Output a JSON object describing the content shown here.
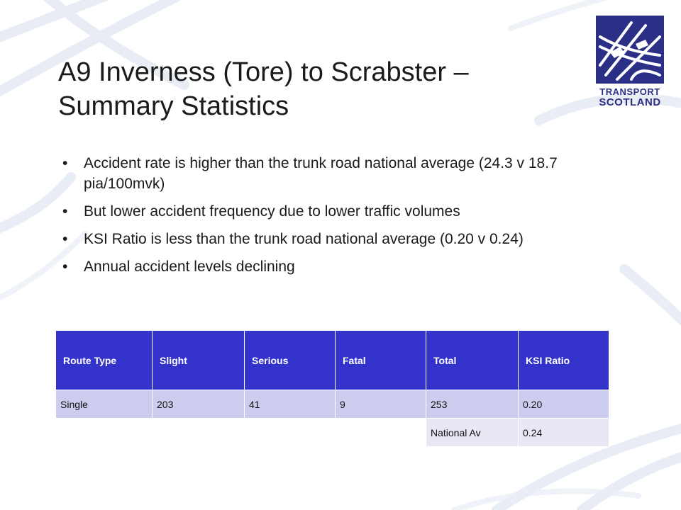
{
  "slide": {
    "title": "A9 Inverness (Tore) to Scrabster – Summary Statistics",
    "bullets": [
      "Accident rate is higher than the trunk road national average (24.3 v 18.7 pia/100mvk)",
      "But lower accident frequency due to lower traffic volumes",
      "KSI Ratio is less than the trunk road national average (0.20 v 0.24)",
      "Annual accident levels declining"
    ],
    "bullet_marker": "•"
  },
  "logo": {
    "line1": "TRANSPORT",
    "line2": "SCOTLAND",
    "icon": "road-junction-icon",
    "color": "#2b2f86"
  },
  "table": {
    "headers": [
      "Route Type",
      "Slight",
      "Serious",
      "Fatal",
      "Total",
      "KSI Ratio"
    ],
    "rows": [
      [
        "Single",
        "203",
        "41",
        "9",
        "253",
        "0.20"
      ]
    ],
    "national": {
      "label": "National Av",
      "value": "0.24"
    },
    "header_color": "#3333cc",
    "row_color": "#ccccee",
    "national_color": "#e8e8f4"
  }
}
